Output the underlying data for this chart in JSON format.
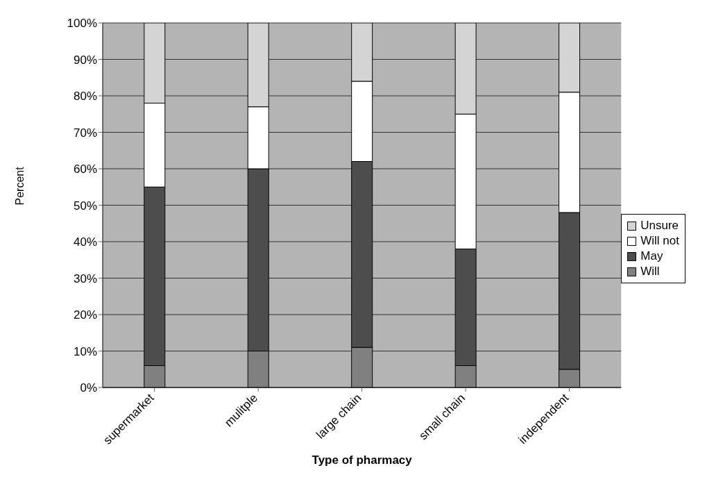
{
  "chart_data": {
    "type": "bar",
    "stacked": true,
    "xlabel": "Type of pharmacy",
    "ylabel": "Percent",
    "categories": [
      "supermarket",
      "mulitple",
      "large chain",
      "small chain",
      "independent"
    ],
    "series": [
      {
        "name": "Will",
        "color": "#808080",
        "values": [
          6,
          10,
          11,
          6,
          5
        ]
      },
      {
        "name": "May",
        "color": "#4d4d4d",
        "values": [
          49,
          50,
          51,
          32,
          43
        ]
      },
      {
        "name": "Will not",
        "color": "#ffffff",
        "values": [
          23,
          17,
          22,
          37,
          33
        ]
      },
      {
        "name": "Unsure",
        "color": "#d4d4d4",
        "values": [
          22,
          23,
          16,
          25,
          19
        ]
      }
    ],
    "ylim": [
      0,
      100
    ],
    "yticks": [
      {
        "value": 0,
        "label": "0%"
      },
      {
        "value": 10,
        "label": "10%"
      },
      {
        "value": 20,
        "label": "20%"
      },
      {
        "value": 30,
        "label": "30%"
      },
      {
        "value": 40,
        "label": "40%"
      },
      {
        "value": 50,
        "label": "50%"
      },
      {
        "value": 60,
        "label": "60%"
      },
      {
        "value": 70,
        "label": "70%"
      },
      {
        "value": 80,
        "label": "80%"
      },
      {
        "value": 90,
        "label": "90%"
      },
      {
        "value": 100,
        "label": "100%"
      }
    ],
    "grid": "y",
    "legend": "right"
  }
}
